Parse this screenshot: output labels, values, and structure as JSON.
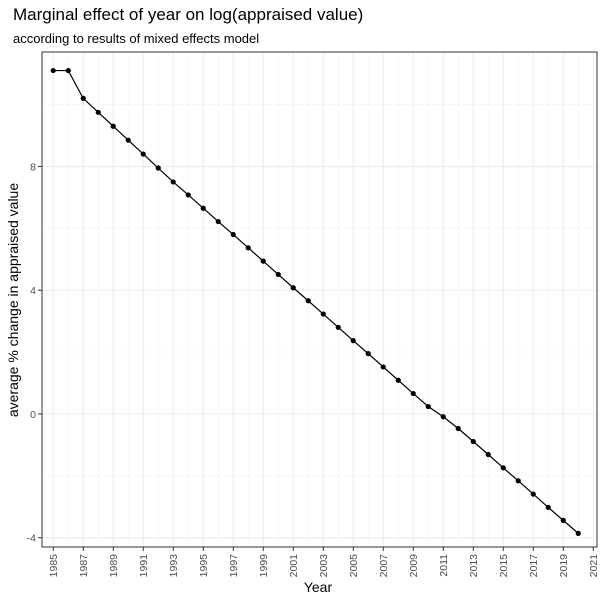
{
  "chart_data": {
    "type": "line",
    "title": "Marginal effect of year on log(appraised value)",
    "subtitle": "according to results of mixed effects model",
    "xlabel": "Year",
    "ylabel": "average % change in appraised value",
    "x": [
      1985,
      1986,
      1987,
      1988,
      1989,
      1990,
      1991,
      1992,
      1993,
      1994,
      1995,
      1996,
      1997,
      1998,
      1999,
      2000,
      2001,
      2002,
      2003,
      2004,
      2005,
      2006,
      2007,
      2008,
      2009,
      2010,
      2011,
      2012,
      2013,
      2014,
      2015,
      2016,
      2017,
      2018,
      2019,
      2020
    ],
    "series": [
      {
        "values": [
          11.1,
          11.1,
          10.2,
          9.75,
          9.3,
          8.85,
          8.4,
          7.95,
          7.5,
          7.08,
          6.65,
          6.22,
          5.8,
          5.37,
          4.94,
          4.51,
          4.08,
          3.66,
          3.23,
          2.8,
          2.37,
          1.95,
          1.52,
          1.09,
          0.66,
          0.24,
          -0.09,
          -0.47,
          -0.89,
          -1.31,
          -1.74,
          -2.16,
          -2.59,
          -3.02,
          -3.44,
          -3.86
        ]
      }
    ],
    "xlim": [
      1984.25,
      2021.25
    ],
    "ylim": [
      -4.3,
      11.7
    ],
    "x_ticks": [
      "1985",
      "1987",
      "1989",
      "1991",
      "1993",
      "1995",
      "1997",
      "1999",
      "2001",
      "2003",
      "2005",
      "2007",
      "2009",
      "2011",
      "2013",
      "2015",
      "2017",
      "2019",
      "2021"
    ],
    "y_ticks": [
      "-4",
      "0",
      "4",
      "8"
    ],
    "grid": true,
    "legend": "none",
    "colors": {
      "line": "#000000",
      "panel_border": "#333333",
      "grid_major": "#ebebeb",
      "grid_minor": "#f3f3f3"
    }
  }
}
